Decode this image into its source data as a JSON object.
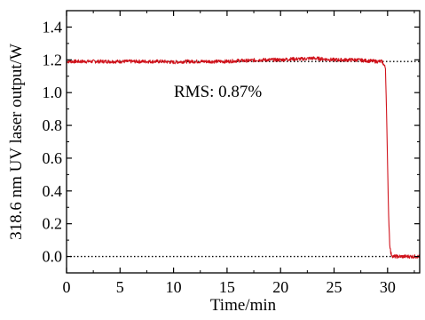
{
  "chart_data": {
    "type": "line",
    "title": "",
    "xlabel": "Time/min",
    "ylabel": "318.6 nm UV laser output/W",
    "xlim": [
      0,
      33
    ],
    "ylim": [
      -0.1,
      1.5
    ],
    "x_ticks": [
      0,
      5,
      10,
      15,
      20,
      25,
      30
    ],
    "x_tick_labels": [
      "0",
      "5",
      "10",
      "15",
      "20",
      "25",
      "30"
    ],
    "y_ticks": [
      0.0,
      0.2,
      0.4,
      0.6,
      0.8,
      1.0,
      1.2,
      1.4
    ],
    "y_tick_labels": [
      "0.0",
      "0.2",
      "0.4",
      "0.6",
      "0.8",
      "1.0",
      "1.2",
      "1.4"
    ],
    "grid": false,
    "legend": "none",
    "annotation": "RMS: 0.87%",
    "reference_lines": [
      {
        "y": 1.19,
        "style": "dotted",
        "color": "#000000"
      },
      {
        "y": 0.0,
        "style": "dotted",
        "color": "#000000"
      }
    ],
    "series": [
      {
        "color": "#d0121b",
        "x": [
          0,
          1,
          2,
          3,
          4,
          5,
          6,
          7,
          8,
          9,
          10,
          11,
          12,
          13,
          14,
          15,
          16,
          17,
          18,
          19,
          20,
          21,
          22,
          23,
          24,
          25,
          26,
          27,
          28,
          29,
          29.5,
          29.8,
          29.9,
          30.0,
          30.1,
          30.2,
          30.3,
          30.5,
          31,
          32,
          33
        ],
        "y": [
          1.19,
          1.19,
          1.19,
          1.19,
          1.19,
          1.19,
          1.19,
          1.19,
          1.19,
          1.19,
          1.185,
          1.19,
          1.19,
          1.19,
          1.19,
          1.19,
          1.195,
          1.195,
          1.2,
          1.2,
          1.2,
          1.205,
          1.205,
          1.21,
          1.205,
          1.2,
          1.2,
          1.2,
          1.195,
          1.19,
          1.19,
          1.15,
          0.9,
          0.55,
          0.25,
          0.08,
          0.02,
          0.0,
          0.0,
          0.0,
          0.0
        ]
      }
    ]
  }
}
